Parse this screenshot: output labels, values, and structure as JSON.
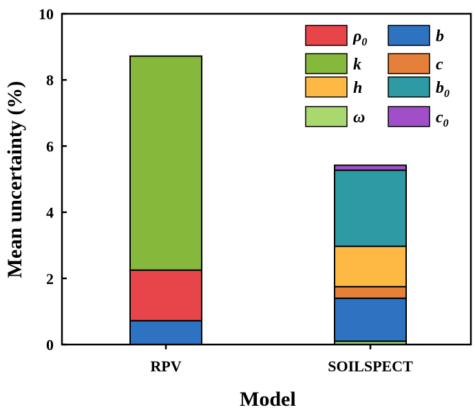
{
  "chart_data": {
    "type": "bar",
    "stacked": true,
    "categories": [
      "RPV",
      "SOILSPECT"
    ],
    "xlabel": "Model",
    "ylabel": "Mean uncertainty (%)",
    "ylim": [
      0,
      10
    ],
    "yticks": [
      0,
      2,
      4,
      6,
      8,
      10
    ],
    "grid": false,
    "legend_position": "top-right",
    "series": [
      {
        "name": "ω",
        "sub": "",
        "color": "#a9d86e",
        "values": [
          0,
          0.1
        ]
      },
      {
        "name": "b",
        "sub": "",
        "color": "#2e73c2",
        "values": [
          0.72,
          1.3
        ]
      },
      {
        "name": "c",
        "sub": "",
        "color": "#e5803a",
        "values": [
          0,
          0.35
        ]
      },
      {
        "name": "ρ",
        "sub": "0",
        "color": "#e8454b",
        "values": [
          1.53,
          0
        ]
      },
      {
        "name": "h",
        "sub": "",
        "color": "#fdb944",
        "values": [
          0,
          1.22
        ]
      },
      {
        "name": "b",
        "sub": "0",
        "color": "#2e9aa3",
        "values": [
          0,
          2.3
        ]
      },
      {
        "name": "k",
        "sub": "",
        "color": "#86b83c",
        "values": [
          6.47,
          0
        ]
      },
      {
        "name": "c",
        "sub": "0",
        "color": "#a04fc9",
        "values": [
          0,
          0.15
        ]
      }
    ],
    "legend_order": [
      3,
      1,
      6,
      2,
      4,
      5,
      0,
      7
    ]
  }
}
